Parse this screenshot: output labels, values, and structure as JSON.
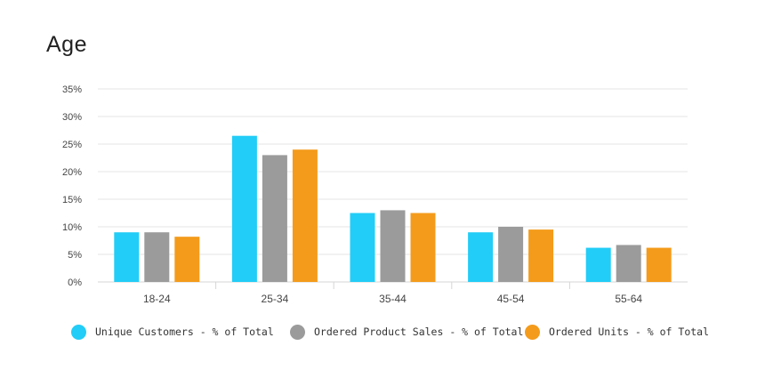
{
  "title": "Age",
  "colors": {
    "unique_customers": "#22cdf7",
    "ordered_product_sales": "#9b9b9b",
    "ordered_units": "#f49b1b",
    "grid": "#e6e6e6"
  },
  "chart_data": {
    "type": "bar",
    "title": "Age",
    "categories": [
      "18-24",
      "25-34",
      "35-44",
      "45-54",
      "55-64"
    ],
    "series": [
      {
        "name": "Unique Customers - % of Total",
        "values": [
          9.0,
          26.5,
          12.5,
          9.0,
          6.2
        ]
      },
      {
        "name": "Ordered Product Sales - % of Total",
        "values": [
          9.0,
          23.0,
          13.0,
          10.0,
          6.7
        ]
      },
      {
        "name": "Ordered Units - % of Total",
        "values": [
          8.2,
          24.0,
          12.5,
          9.5,
          6.2
        ]
      }
    ],
    "yticks": [
      "0%",
      "5%",
      "10%",
      "15%",
      "20%",
      "25%",
      "30%",
      "35%"
    ],
    "ylim": [
      0,
      35
    ],
    "grid": true,
    "legend_position": "bottom"
  }
}
